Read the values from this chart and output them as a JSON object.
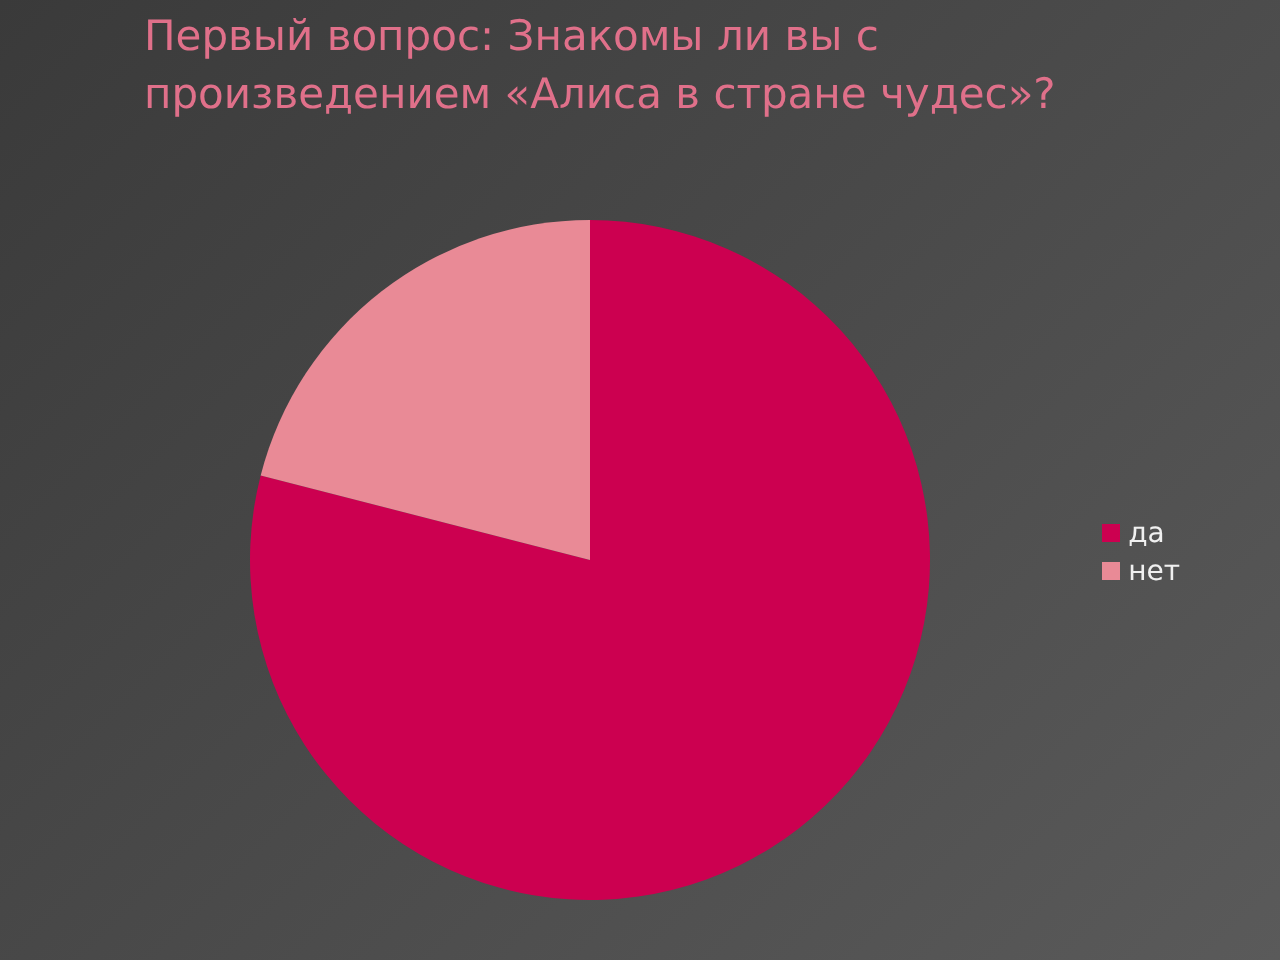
{
  "chart_data": {
    "type": "pie",
    "title": "Первый вопрос: Знакомы ли вы с произведением «Алиса в стране чудес»?",
    "categories": [
      "да",
      "нет"
    ],
    "values": [
      79,
      21
    ],
    "colors": [
      "#cc0050",
      "#e98a96"
    ],
    "legend": "right"
  }
}
